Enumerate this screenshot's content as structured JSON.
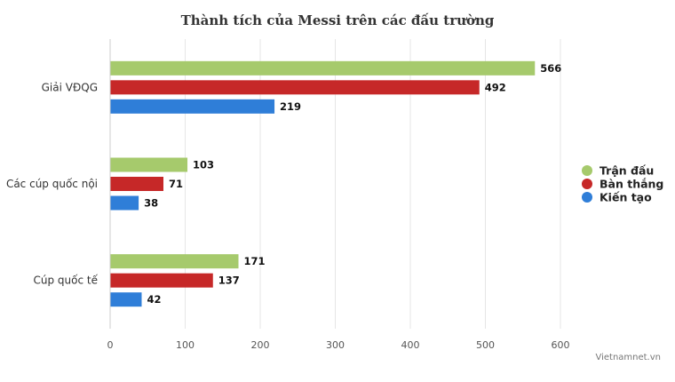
{
  "chart_data": {
    "type": "bar",
    "orientation": "horizontal",
    "title": "Thành tích của Messi trên các đấu trường",
    "categories": [
      "Giải VĐQG",
      "Các cúp quốc nội",
      "Cúp quốc tế"
    ],
    "series": [
      {
        "name": "Trận đấu",
        "color": "#a6ca6c",
        "values": [
          566,
          103,
          171
        ]
      },
      {
        "name": "Bàn thắng",
        "color": "#c62828",
        "values": [
          492,
          71,
          137
        ]
      },
      {
        "name": "Kiến tạo",
        "color": "#2f7ed8",
        "values": [
          219,
          38,
          42
        ]
      }
    ],
    "xlim": [
      0,
      600
    ],
    "xticks": [
      "0",
      "100",
      "200",
      "300",
      "400",
      "500",
      "600"
    ],
    "grid": true,
    "legend_position": "right",
    "data_labels": true
  },
  "credit": "Vietnamnet.vn"
}
